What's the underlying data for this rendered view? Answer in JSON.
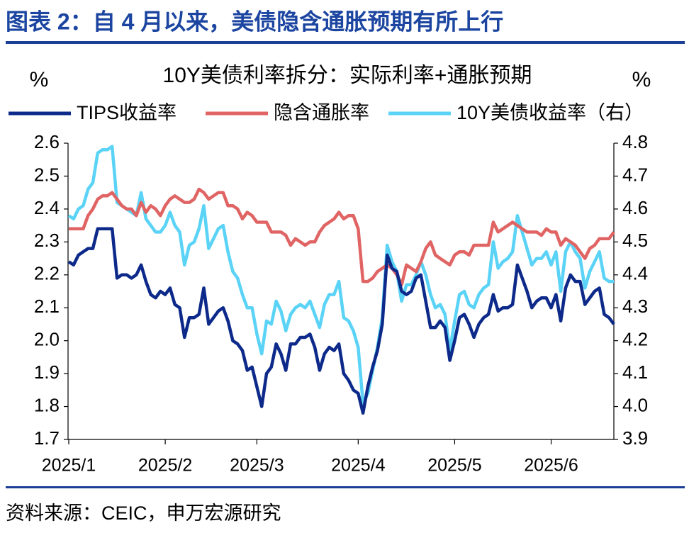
{
  "page_title": "图表 2：自 4 月以来，美债隐含通胀预期有所上行",
  "source": "资料来源：CEIC，申万宏源研究",
  "chart_data": {
    "type": "line",
    "title": "10Y美债利率拆分：实际利率+通胀预期",
    "y_label": "%",
    "y2_label": "%",
    "categories": [
      "2025/1",
      null,
      null,
      null,
      null,
      null,
      null,
      null,
      null,
      null,
      null,
      null,
      null,
      null,
      null,
      null,
      null,
      null,
      null,
      null,
      "2025/2",
      null,
      null,
      null,
      null,
      null,
      null,
      null,
      null,
      null,
      null,
      null,
      null,
      null,
      null,
      null,
      null,
      null,
      null,
      "2025/3",
      null,
      null,
      null,
      null,
      null,
      null,
      null,
      null,
      null,
      null,
      null,
      null,
      null,
      null,
      null,
      null,
      null,
      null,
      null,
      null,
      "2025/4",
      null,
      null,
      null,
      null,
      null,
      null,
      null,
      null,
      null,
      null,
      null,
      null,
      null,
      null,
      null,
      null,
      null,
      null,
      null,
      "2025/5",
      null,
      null,
      null,
      null,
      null,
      null,
      null,
      null,
      null,
      null,
      null,
      null,
      null,
      null,
      null,
      null,
      null,
      null,
      null,
      "2025/6",
      null,
      null,
      null,
      null,
      null,
      null,
      null,
      null,
      null,
      null,
      null,
      null,
      null
    ],
    "series": [
      {
        "name": "TIPS收益率",
        "color": "#0d2a8a",
        "values": [
          2.24,
          2.23,
          2.26,
          2.27,
          2.28,
          2.28,
          2.34,
          2.34,
          2.34,
          2.34,
          2.19,
          2.2,
          2.2,
          2.19,
          2.2,
          2.23,
          2.18,
          2.14,
          2.13,
          2.15,
          2.14,
          2.16,
          2.11,
          2.1,
          2.01,
          2.07,
          2.07,
          2.08,
          2.16,
          2.05,
          2.07,
          2.09,
          2.1,
          2.06,
          2.0,
          1.99,
          1.97,
          1.91,
          1.92,
          1.86,
          1.8,
          1.9,
          1.92,
          1.99,
          1.96,
          1.91,
          1.99,
          1.99,
          2.01,
          2.01,
          2.02,
          1.98,
          1.91,
          1.96,
          1.98,
          1.97,
          1.99,
          1.9,
          1.88,
          1.85,
          1.84,
          1.78,
          1.86,
          1.92,
          1.97,
          2.05,
          2.26,
          2.22,
          2.21,
          2.15,
          2.14,
          2.15,
          2.19,
          2.2,
          2.12,
          2.04,
          2.04,
          2.06,
          2.04,
          1.94,
          2.0,
          2.07,
          2.08,
          2.05,
          2.01,
          2.05,
          2.07,
          2.08,
          2.14,
          2.09,
          2.1,
          2.1,
          2.11,
          2.23,
          2.19,
          2.15,
          2.1,
          2.12,
          2.13,
          2.13,
          2.1,
          2.14,
          2.06,
          2.16,
          2.2,
          2.18,
          2.18,
          2.11,
          2.13,
          2.15,
          2.16,
          2.08,
          2.07,
          2.05
        ]
      },
      {
        "name": "隐含通胀率",
        "color": "#e06464",
        "values": [
          2.34,
          2.34,
          2.34,
          2.34,
          2.38,
          2.4,
          2.43,
          2.44,
          2.44,
          2.45,
          2.43,
          2.41,
          2.4,
          2.4,
          2.38,
          2.42,
          2.39,
          2.41,
          2.4,
          2.38,
          2.41,
          2.43,
          2.44,
          2.43,
          2.42,
          2.42,
          2.43,
          2.46,
          2.45,
          2.43,
          2.44,
          2.45,
          2.45,
          2.41,
          2.41,
          2.4,
          2.37,
          2.39,
          2.38,
          2.36,
          2.36,
          2.36,
          2.33,
          2.33,
          2.33,
          2.32,
          2.29,
          2.31,
          2.3,
          2.29,
          2.3,
          2.3,
          2.33,
          2.35,
          2.36,
          2.37,
          2.39,
          2.37,
          2.38,
          2.38,
          2.34,
          2.18,
          2.18,
          2.19,
          2.21,
          2.22,
          2.23,
          2.22,
          2.2,
          2.17,
          2.23,
          2.22,
          2.21,
          2.24,
          2.28,
          2.3,
          2.26,
          2.25,
          2.24,
          2.23,
          2.26,
          2.27,
          2.27,
          2.26,
          2.29,
          2.29,
          2.29,
          2.29,
          2.36,
          2.33,
          2.34,
          2.35,
          2.36,
          2.35,
          2.34,
          2.33,
          2.33,
          2.33,
          2.32,
          2.34,
          2.33,
          2.33,
          2.29,
          2.31,
          2.3,
          2.29,
          2.27,
          2.25,
          2.28,
          2.29,
          2.31,
          2.31,
          2.31,
          2.33
        ]
      },
      {
        "name": "10Y美债收益率（右）",
        "color": "#5ad3f6",
        "axis": "y2",
        "values": [
          4.58,
          4.57,
          4.6,
          4.61,
          4.66,
          4.68,
          4.77,
          4.78,
          4.78,
          4.79,
          4.62,
          4.61,
          4.6,
          4.59,
          4.58,
          4.65,
          4.57,
          4.55,
          4.53,
          4.53,
          4.55,
          4.59,
          4.55,
          4.53,
          4.43,
          4.49,
          4.5,
          4.54,
          4.61,
          4.48,
          4.51,
          4.54,
          4.55,
          4.47,
          4.41,
          4.39,
          4.34,
          4.3,
          4.3,
          4.22,
          4.16,
          4.26,
          4.25,
          4.32,
          4.29,
          4.23,
          4.28,
          4.3,
          4.31,
          4.3,
          4.32,
          4.28,
          4.24,
          4.31,
          4.34,
          4.34,
          4.38,
          4.27,
          4.26,
          4.23,
          4.18,
          4.01,
          4.04,
          4.11,
          4.18,
          4.27,
          4.49,
          4.44,
          4.41,
          4.32,
          4.37,
          4.37,
          4.4,
          4.44,
          4.4,
          4.34,
          4.3,
          4.31,
          4.28,
          4.17,
          4.26,
          4.34,
          4.35,
          4.31,
          4.3,
          4.34,
          4.36,
          4.37,
          4.5,
          4.42,
          4.44,
          4.45,
          4.47,
          4.58,
          4.53,
          4.48,
          4.43,
          4.45,
          4.45,
          4.47,
          4.43,
          4.47,
          4.35,
          4.47,
          4.5,
          4.47,
          4.45,
          4.36,
          4.41,
          4.44,
          4.47,
          4.39,
          4.38,
          4.38
        ]
      }
    ],
    "ylim": [
      1.7,
      2.6
    ],
    "yticks": [
      1.7,
      1.8,
      1.9,
      {
        "value": 2,
        "label": "2.0"
      },
      2.1,
      2.2,
      2.3,
      2.4,
      2.5,
      2.6
    ],
    "y2lim": [
      3.9,
      4.8
    ],
    "y2ticks": [
      3.9,
      {
        "value": 4,
        "label": "4.0"
      },
      4.1,
      4.2,
      4.3,
      4.4,
      4.5,
      4.6,
      4.7,
      4.8
    ],
    "grid": false
  }
}
